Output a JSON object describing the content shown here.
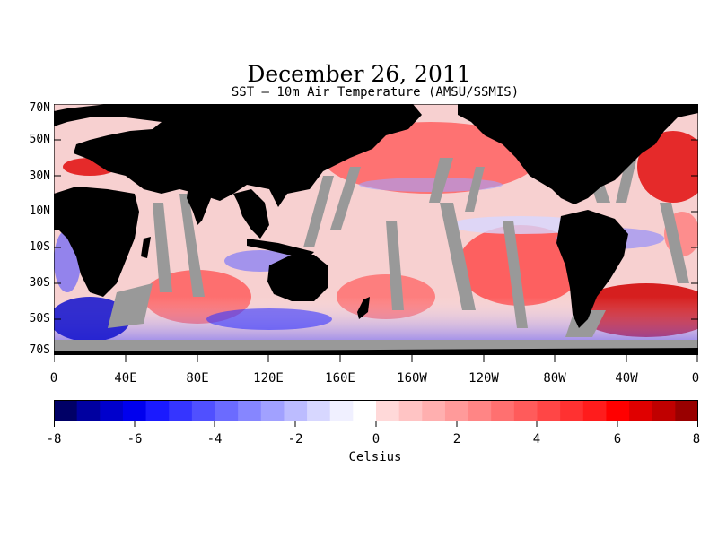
{
  "title": "December 26, 2011",
  "subtitle": "SST – 10m Air Temperature (AMSU/SSMIS)",
  "map": {
    "lat_labels": [
      "70N",
      "50N",
      "30N",
      "10N",
      "10S",
      "30S",
      "50S",
      "70S"
    ],
    "lon_labels": [
      "0",
      "40E",
      "80E",
      "120E",
      "160E",
      "160W",
      "120W",
      "80W",
      "40W",
      "0"
    ],
    "colors": {
      "land": "#000000",
      "no_data": "#999999",
      "neutral": "#ffffff"
    }
  },
  "colorbar": {
    "ticks": [
      "-8",
      "-6",
      "-4",
      "-2",
      "0",
      "2",
      "4",
      "6",
      "8"
    ],
    "unit": "Celsius",
    "colors": [
      "#000066",
      "#0000a0",
      "#0000cc",
      "#0000ee",
      "#1a1aff",
      "#3535ff",
      "#5050ff",
      "#6b6bff",
      "#8686ff",
      "#a1a1ff",
      "#bcbcff",
      "#d7d7ff",
      "#f0f0ff",
      "#ffffff",
      "#ffd9d9",
      "#ffc4c4",
      "#ffafaf",
      "#ff9a9a",
      "#ff8585",
      "#ff7070",
      "#ff5b5b",
      "#ff4646",
      "#ff3131",
      "#ff1c1c",
      "#ff0000",
      "#e00000",
      "#c00000",
      "#990000"
    ]
  }
}
